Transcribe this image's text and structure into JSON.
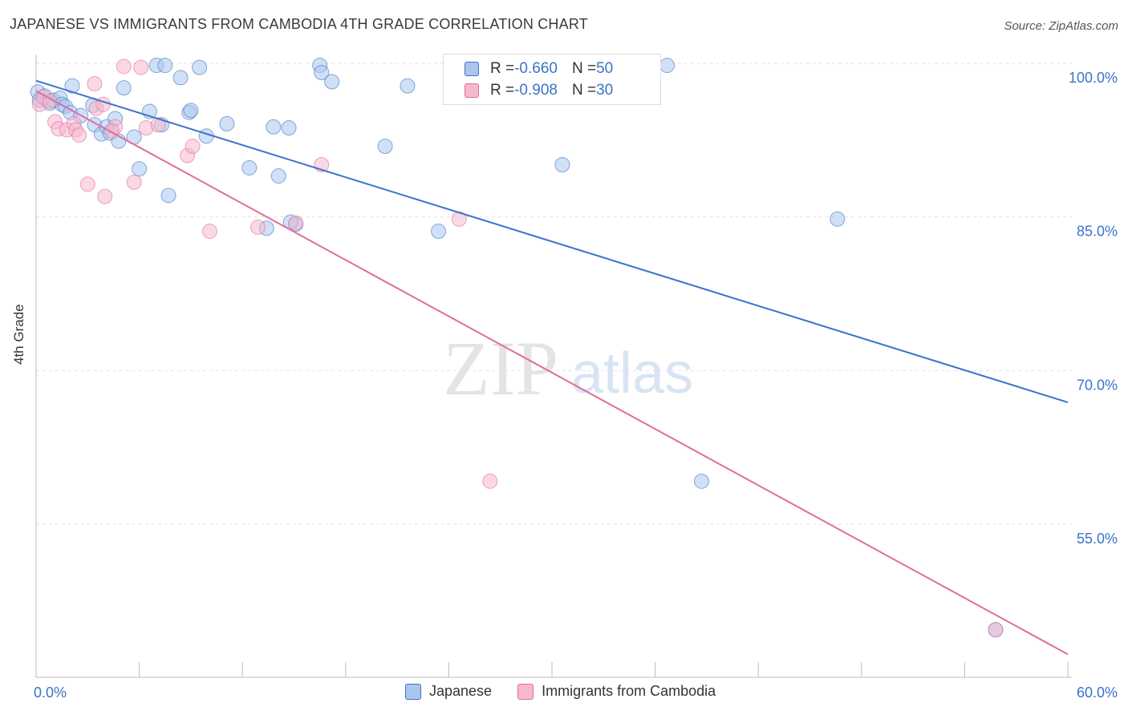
{
  "title": "JAPANESE VS IMMIGRANTS FROM CAMBODIA 4TH GRADE CORRELATION CHART",
  "source": "Source: ZipAtlas.com",
  "watermark": {
    "zip": "ZIP",
    "atlas": "atlas"
  },
  "legend": {
    "rows": [
      {
        "r_label": "R = ",
        "r_value": "-0.660",
        "n_label": "N = ",
        "n_value": "50"
      },
      {
        "r_label": "R = ",
        "r_value": "-0.908",
        "n_label": "N = ",
        "n_value": "30"
      }
    ]
  },
  "chart_data": {
    "type": "scatter",
    "title": "JAPANESE VS IMMIGRANTS FROM CAMBODIA 4TH GRADE CORRELATION CHART",
    "xlabel": "",
    "ylabel": "4th Grade",
    "xlim": [
      0,
      60
    ],
    "ylim": [
      40,
      102
    ],
    "x_tick_labels": [
      "0.0%",
      "60.0%"
    ],
    "y_ticks": [
      55,
      70,
      85,
      100
    ],
    "y_tick_labels": [
      "55.0%",
      "70.0%",
      "85.0%",
      "100.0%"
    ],
    "grid": true,
    "legend_position": "top-center",
    "colors": {
      "japanese": "#3b73c8",
      "japanese_fill": "#aac6ef",
      "cambodia": "#e06d9a",
      "cambodia_fill": "#f6b8cd"
    },
    "series": [
      {
        "name": "Japanese",
        "trend": {
          "x": [
            0,
            60
          ],
          "y": [
            98.3,
            66.9
          ]
        },
        "points": [
          [
            0.1,
            97.2
          ],
          [
            0.2,
            96.4
          ],
          [
            0.5,
            96.8
          ],
          [
            0.8,
            96.1
          ],
          [
            1.0,
            96.4
          ],
          [
            1.4,
            96.6
          ],
          [
            1.5,
            96.0
          ],
          [
            1.7,
            95.8
          ],
          [
            2.0,
            95.2
          ],
          [
            2.1,
            97.8
          ],
          [
            2.6,
            94.9
          ],
          [
            3.3,
            95.9
          ],
          [
            3.4,
            94.0
          ],
          [
            3.8,
            93.1
          ],
          [
            4.1,
            93.8
          ],
          [
            4.3,
            93.2
          ],
          [
            4.6,
            94.6
          ],
          [
            4.8,
            92.4
          ],
          [
            5.1,
            97.6
          ],
          [
            5.7,
            92.8
          ],
          [
            6.0,
            89.7
          ],
          [
            6.6,
            95.3
          ],
          [
            7.0,
            99.8
          ],
          [
            7.3,
            94.0
          ],
          [
            7.5,
            99.8
          ],
          [
            7.7,
            87.1
          ],
          [
            8.4,
            98.6
          ],
          [
            8.9,
            95.2
          ],
          [
            9.0,
            95.4
          ],
          [
            9.5,
            99.6
          ],
          [
            9.9,
            92.9
          ],
          [
            11.1,
            94.1
          ],
          [
            12.4,
            89.8
          ],
          [
            13.4,
            83.9
          ],
          [
            13.8,
            93.8
          ],
          [
            14.1,
            89.0
          ],
          [
            14.7,
            93.7
          ],
          [
            15.1,
            84.3
          ],
          [
            16.5,
            99.8
          ],
          [
            16.6,
            99.1
          ],
          [
            17.2,
            98.2
          ],
          [
            20.3,
            91.9
          ],
          [
            21.6,
            97.8
          ],
          [
            23.4,
            83.6
          ],
          [
            30.6,
            90.1
          ],
          [
            36.7,
            99.8
          ],
          [
            38.7,
            59.2
          ],
          [
            46.6,
            84.8
          ],
          [
            55.8,
            44.7
          ],
          [
            14.8,
            84.5
          ]
        ]
      },
      {
        "name": "Immigrants from Cambodia",
        "trend": {
          "x": [
            0,
            60
          ],
          "y": [
            97.3,
            42.3
          ]
        },
        "points": [
          [
            0.2,
            96.0
          ],
          [
            0.4,
            96.7
          ],
          [
            0.8,
            96.3
          ],
          [
            1.1,
            94.3
          ],
          [
            1.3,
            93.6
          ],
          [
            1.8,
            93.5
          ],
          [
            2.2,
            94.1
          ],
          [
            2.3,
            93.5
          ],
          [
            2.5,
            93.0
          ],
          [
            3.0,
            88.2
          ],
          [
            3.4,
            98.0
          ],
          [
            3.5,
            95.6
          ],
          [
            3.9,
            96.0
          ],
          [
            4.0,
            87.0
          ],
          [
            4.6,
            93.8
          ],
          [
            5.1,
            99.7
          ],
          [
            5.7,
            88.4
          ],
          [
            6.1,
            99.6
          ],
          [
            6.4,
            93.7
          ],
          [
            7.1,
            94.0
          ],
          [
            8.8,
            91.0
          ],
          [
            9.1,
            91.9
          ],
          [
            10.1,
            83.6
          ],
          [
            12.9,
            84.0
          ],
          [
            15.1,
            84.4
          ],
          [
            16.6,
            90.1
          ],
          [
            24.6,
            84.8
          ],
          [
            26.4,
            59.2
          ],
          [
            55.8,
            44.7
          ],
          [
            4.4,
            93.4
          ]
        ]
      }
    ]
  },
  "bottom_legend": [
    "Japanese",
    "Immigrants from Cambodia"
  ]
}
